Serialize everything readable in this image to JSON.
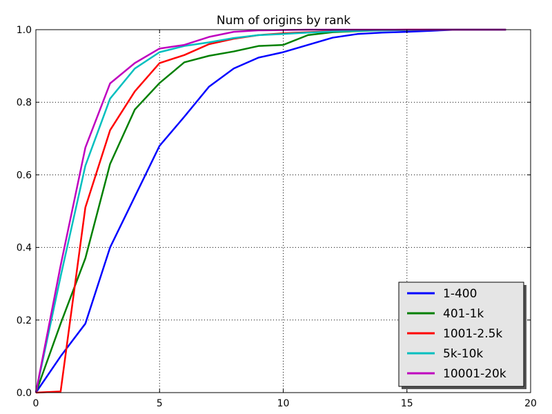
{
  "chart_data": {
    "type": "line",
    "title": "Num of origins by rank",
    "xlabel": "",
    "ylabel": "",
    "xlim": [
      0,
      20
    ],
    "ylim": [
      0,
      1.0
    ],
    "xticks": [
      0,
      5,
      10,
      15,
      20
    ],
    "xtick_labels": [
      "0",
      "5",
      "10",
      "15",
      "20"
    ],
    "yticks": [
      0,
      0.2,
      0.4,
      0.6,
      0.8,
      1.0
    ],
    "ytick_labels": [
      "0.0",
      "0.2",
      "0.4",
      "0.6",
      "0.8",
      "1.0"
    ],
    "grid": true,
    "legend_position": "lower-right",
    "series": [
      {
        "name": "1-400",
        "color": "#0000ff",
        "x": [
          0,
          1,
          2,
          3,
          4,
          5,
          6,
          7,
          8,
          9,
          10,
          11,
          12,
          13,
          14,
          15,
          16,
          17,
          18,
          19
        ],
        "y": [
          0.0,
          0.1,
          0.19,
          0.4,
          0.54,
          0.68,
          0.76,
          0.843,
          0.893,
          0.923,
          0.938,
          0.958,
          0.978,
          0.988,
          0.992,
          0.994,
          0.997,
          1.0,
          1.0,
          1.0
        ]
      },
      {
        "name": "401-1k",
        "color": "#008000",
        "x": [
          0,
          1,
          2,
          3,
          4,
          5,
          6,
          7,
          8,
          9,
          10,
          11,
          12,
          13,
          14,
          15,
          16,
          17,
          18,
          19
        ],
        "y": [
          0.0,
          0.19,
          0.37,
          0.63,
          0.78,
          0.853,
          0.91,
          0.928,
          0.94,
          0.955,
          0.958,
          0.985,
          0.993,
          0.996,
          0.998,
          0.999,
          1.0,
          1.0,
          1.0,
          1.0
        ]
      },
      {
        "name": "1001-2.5k",
        "color": "#ff0000",
        "x": [
          0,
          1,
          2,
          3,
          4,
          5,
          6,
          7,
          8,
          9,
          10,
          11,
          12,
          13,
          14,
          15,
          16,
          17,
          18,
          19
        ],
        "y": [
          0.0,
          0.003,
          0.51,
          0.723,
          0.83,
          0.908,
          0.93,
          0.96,
          0.975,
          0.985,
          0.99,
          0.993,
          0.996,
          0.998,
          0.999,
          1.0,
          1.0,
          1.0,
          1.0,
          1.0
        ]
      },
      {
        "name": "5k-10k",
        "color": "#00bfbf",
        "x": [
          0,
          1,
          2,
          3,
          4,
          5,
          6,
          7,
          8,
          9,
          10,
          11,
          12,
          13,
          14,
          15,
          16,
          17,
          18,
          19
        ],
        "y": [
          0.0,
          0.32,
          0.625,
          0.81,
          0.893,
          0.938,
          0.955,
          0.965,
          0.977,
          0.985,
          0.988,
          0.992,
          0.995,
          0.997,
          0.998,
          0.999,
          1.0,
          1.0,
          1.0,
          1.0
        ]
      },
      {
        "name": "10001-20k",
        "color": "#bf00bf",
        "x": [
          0,
          1,
          2,
          3,
          4,
          5,
          6,
          7,
          8,
          9,
          10,
          11,
          12,
          13,
          14,
          15,
          16,
          17,
          18,
          19
        ],
        "y": [
          0.0,
          0.35,
          0.675,
          0.852,
          0.908,
          0.948,
          0.958,
          0.98,
          0.994,
          0.998,
          0.999,
          1.0,
          1.0,
          1.0,
          1.0,
          1.0,
          1.0,
          1.0,
          1.0,
          1.0
        ]
      }
    ]
  }
}
